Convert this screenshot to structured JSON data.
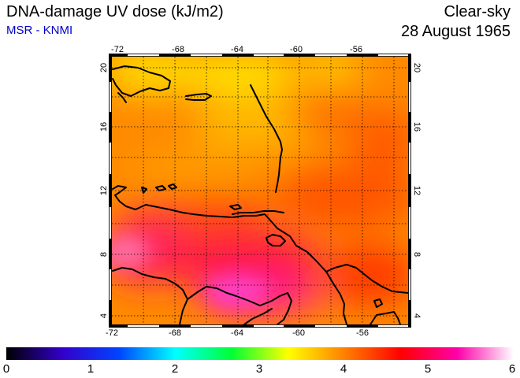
{
  "header": {
    "title": "DNA-damage UV dose (kJ/m2)",
    "subtitle": "MSR - KNMI",
    "condition": "Clear-sky",
    "date": "28 August 1965"
  },
  "map": {
    "lon_range": [
      -72,
      -53
    ],
    "lat_range": [
      3.5,
      20.5
    ],
    "lon_ticks": [
      -72,
      -68,
      -64,
      -60,
      -56
    ],
    "lat_ticks": [
      4,
      8,
      12,
      16,
      20
    ],
    "gridlines": true,
    "field_colors": [
      "#ff8c00",
      "#ffcc00",
      "#ff4000",
      "#ff0060",
      "#ff33aa"
    ]
  },
  "colorbar": {
    "min": 0,
    "max": 6,
    "labels": [
      "0",
      "1",
      "2",
      "3",
      "4",
      "5",
      "6"
    ],
    "colors": [
      "#000000",
      "#3300cc",
      "#0044ff",
      "#00ffff",
      "#00ff33",
      "#ffff00",
      "#ff8000",
      "#ff0000",
      "#ff00aa",
      "#ffffff"
    ]
  }
}
